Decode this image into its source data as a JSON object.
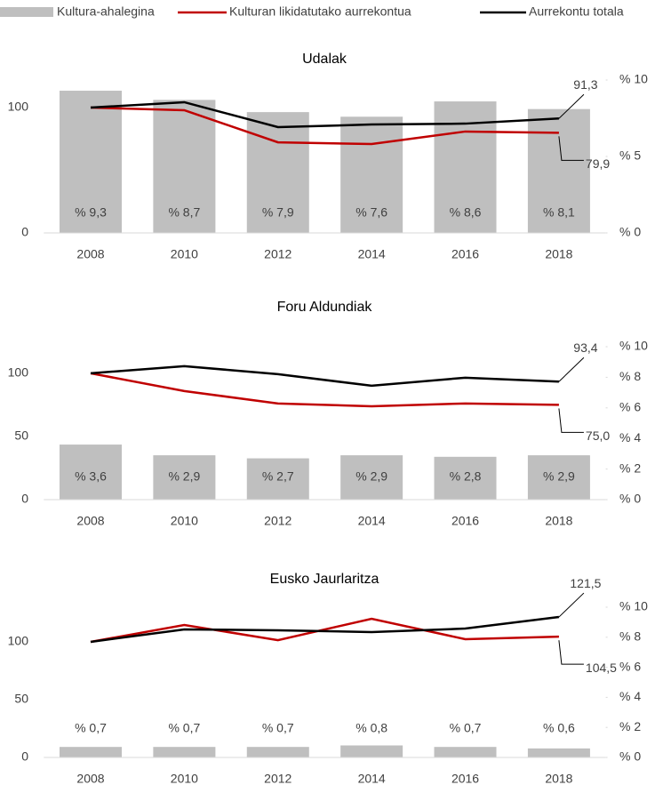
{
  "chart_data": [
    {
      "type": "bar-line",
      "title": "Udalak",
      "categories": [
        "2008",
        "2010",
        "2012",
        "2014",
        "2016",
        "2018"
      ],
      "ylim": [
        0,
        122
      ],
      "yticks": [
        0,
        100
      ],
      "y2lim": [
        0,
        10
      ],
      "y2ticks": [
        {
          "value": 0,
          "label": "% 0"
        },
        {
          "value": 5,
          "label": "% 5"
        },
        {
          "value": 10,
          "label": "% 10"
        }
      ],
      "series": [
        {
          "name": "Kultura-ahalegina",
          "color": "#bfbfbf",
          "axis": "y2",
          "kind": "bar",
          "values": [
            9.3,
            8.7,
            7.9,
            7.6,
            8.6,
            8.1
          ],
          "value_labels": [
            "% 9,3",
            "% 8,7",
            "% 7,9",
            "% 7,6",
            "% 8,6",
            "% 8,1"
          ]
        },
        {
          "name": "Kulturan likidatutako aurrekontua",
          "color": "#c00000",
          "kind": "line",
          "values": [
            100,
            97.9,
            72.3,
            70.9,
            80.9,
            79.9
          ],
          "value_labels": [
            null,
            null,
            null,
            null,
            null,
            "79,9"
          ]
        },
        {
          "name": "Aurrekontu totala",
          "color": "#000000",
          "kind": "line",
          "values": [
            100,
            104.3,
            84.4,
            86.5,
            87.2,
            91.3
          ],
          "value_labels": [
            null,
            null,
            null,
            null,
            null,
            "91,3"
          ]
        }
      ]
    },
    {
      "type": "bar-line",
      "title": "Foru Aldundiak",
      "categories": [
        "2008",
        "2010",
        "2012",
        "2014",
        "2016",
        "2018"
      ],
      "ylim": [
        0,
        121
      ],
      "yticks": [
        0,
        50,
        100
      ],
      "y2lim": [
        0,
        10
      ],
      "y2ticks": [
        {
          "value": 0,
          "label": "% 0"
        },
        {
          "value": 2,
          "label": "% 2"
        },
        {
          "value": 4,
          "label": "% 4"
        },
        {
          "value": 6,
          "label": "% 6"
        },
        {
          "value": 8,
          "label": "% 8"
        },
        {
          "value": 10,
          "label": "% 10"
        }
      ],
      "series": [
        {
          "color": "#bfbfbf",
          "axis": "y2",
          "kind": "bar",
          "values": [
            3.6,
            2.9,
            2.7,
            2.9,
            2.8,
            2.9
          ],
          "value_labels": [
            "% 3,6",
            "% 2,9",
            "% 2,7",
            "% 2,9",
            "% 2,8",
            "% 2,9"
          ]
        },
        {
          "color": "#c00000",
          "kind": "line",
          "values": [
            100,
            85.9,
            76.1,
            73.9,
            76.1,
            75.0
          ],
          "value_labels": [
            null,
            null,
            null,
            null,
            null,
            "75,0"
          ]
        },
        {
          "color": "#000000",
          "kind": "line",
          "values": [
            100,
            105.6,
            99.3,
            90.1,
            96.5,
            93.4
          ],
          "value_labels": [
            null,
            null,
            null,
            null,
            null,
            "93,4"
          ]
        }
      ]
    },
    {
      "type": "bar-line",
      "title": "Eusko Jaurlaritza",
      "categories": [
        "2008",
        "2010",
        "2012",
        "2014",
        "2016",
        "2018"
      ],
      "ylim": [
        0,
        130
      ],
      "yticks": [
        0,
        50,
        100
      ],
      "y2lim": [
        0,
        10
      ],
      "y2ticks": [
        {
          "value": 0,
          "label": "% 0"
        },
        {
          "value": 2,
          "label": "% 2"
        },
        {
          "value": 4,
          "label": "% 4"
        },
        {
          "value": 6,
          "label": "% 6"
        },
        {
          "value": 8,
          "label": "% 8"
        },
        {
          "value": 10,
          "label": "% 10"
        }
      ],
      "series": [
        {
          "color": "#bfbfbf",
          "axis": "y2",
          "kind": "bar",
          "values": [
            0.7,
            0.7,
            0.7,
            0.8,
            0.7,
            0.6
          ],
          "value_labels": [
            "% 0,7",
            "% 0,7",
            "% 0,7",
            "% 0,8",
            "% 0,7",
            "% 0,6"
          ]
        },
        {
          "color": "#c00000",
          "kind": "line",
          "values": [
            100,
            114.6,
            101.5,
            120,
            102.3,
            104.5
          ],
          "value_labels": [
            null,
            null,
            null,
            null,
            null,
            "104,5"
          ]
        },
        {
          "color": "#000000",
          "kind": "line",
          "values": [
            100,
            110.8,
            110,
            108.5,
            111.5,
            121.5
          ],
          "value_labels": [
            null,
            null,
            null,
            null,
            null,
            "121,5"
          ]
        }
      ]
    }
  ]
}
